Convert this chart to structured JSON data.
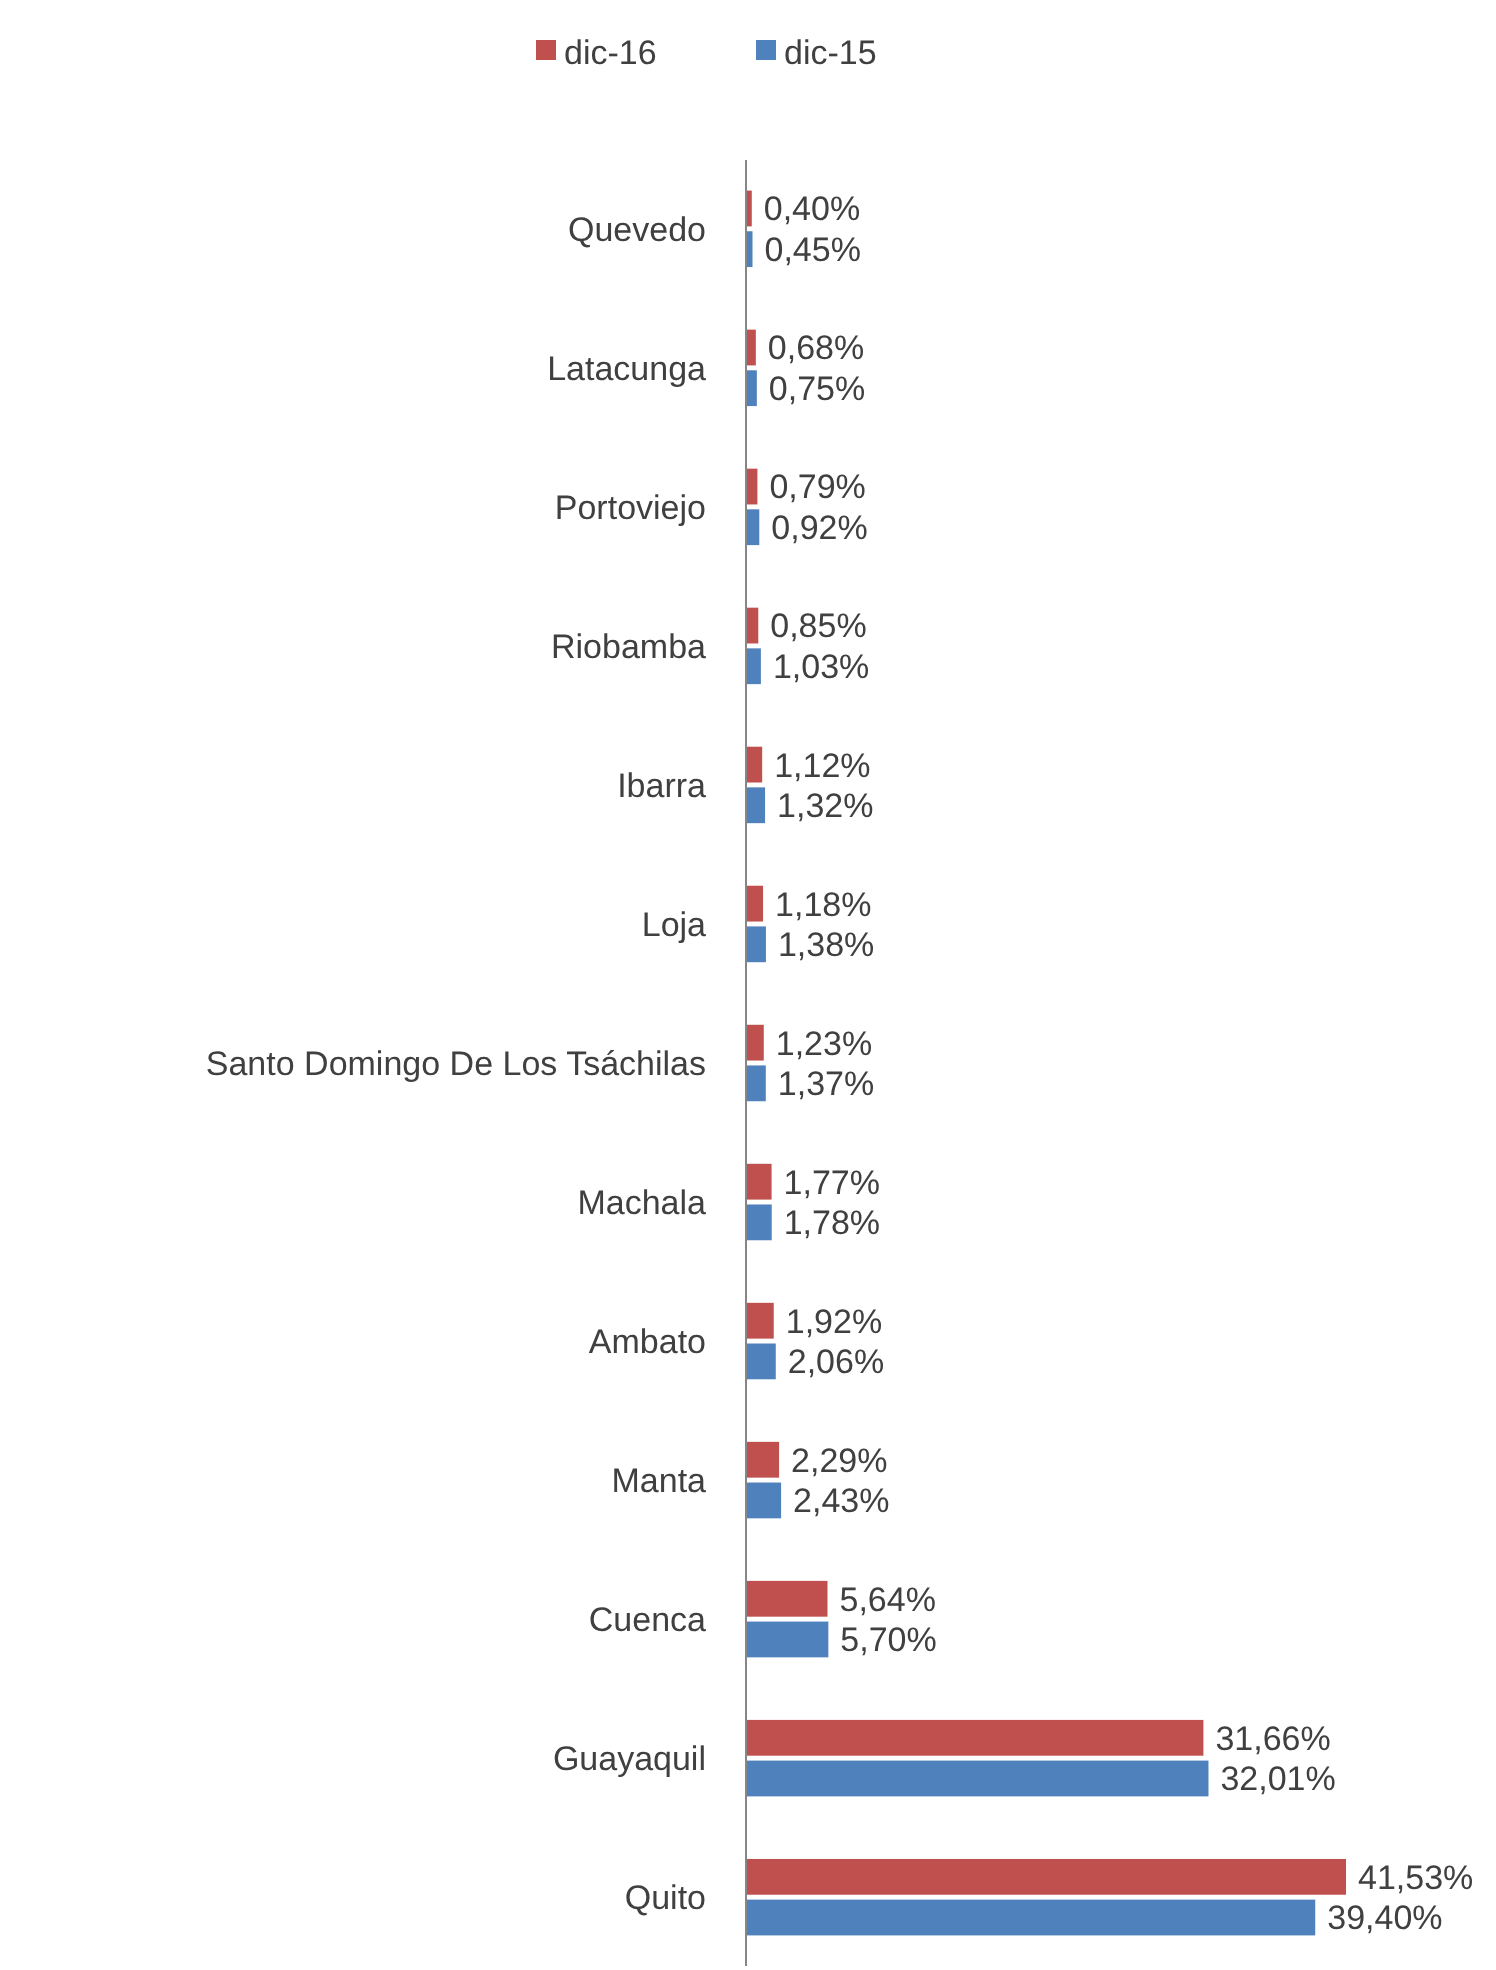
{
  "chart_data": {
    "type": "bar",
    "orientation": "horizontal",
    "legend": "top",
    "categories": [
      "Quevedo",
      "Latacunga",
      "Portoviejo",
      "Riobamba",
      "Ibarra",
      "Loja",
      "Santo Domingo De Los Tsáchilas",
      "Machala",
      "Ambato",
      "Manta",
      "Cuenca",
      "Guayaquil",
      "Quito"
    ],
    "series": [
      {
        "name": "dic-16",
        "color": "#c0504d",
        "values": [
          0.4,
          0.68,
          0.79,
          0.85,
          1.12,
          1.18,
          1.23,
          1.77,
          1.92,
          2.29,
          5.64,
          31.66,
          41.53
        ],
        "value_labels": [
          "0,40%",
          "0,68%",
          "0,79%",
          "0,85%",
          "1,12%",
          "1,18%",
          "1,23%",
          "1,77%",
          "1,92%",
          "2,29%",
          "5,64%",
          "31,66%",
          "41,53%"
        ]
      },
      {
        "name": "dic-15",
        "color": "#4f81bd",
        "values": [
          0.45,
          0.75,
          0.92,
          1.03,
          1.32,
          1.38,
          1.37,
          1.78,
          2.06,
          2.43,
          5.7,
          32.01,
          39.4
        ],
        "value_labels": [
          "0,45%",
          "0,75%",
          "0,92%",
          "1,03%",
          "1,32%",
          "1,38%",
          "1,37%",
          "1,78%",
          "2,06%",
          "2,43%",
          "5,70%",
          "32,01%",
          "39,40%"
        ]
      }
    ]
  }
}
